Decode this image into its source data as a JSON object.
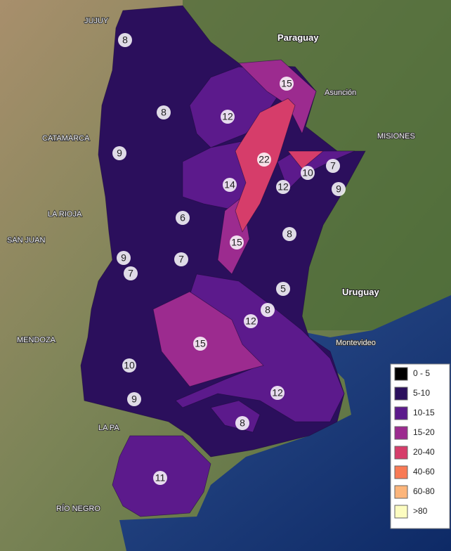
{
  "places": [
    "JUJUY",
    "Paraguay",
    "Asunción",
    "CATAMARCA",
    "LA RIOJA",
    "SAN JUAN",
    "MENDOZA",
    "MISIONES",
    "Uruguay",
    "Montevideo",
    "RÍO NEGRO",
    "LA PA"
  ],
  "regions": [
    8,
    15,
    8,
    12,
    9,
    22,
    7,
    10,
    9,
    14,
    12,
    6,
    8,
    15,
    9,
    7,
    7,
    5,
    8,
    12,
    15,
    10,
    12,
    9,
    8,
    11
  ],
  "legend": [
    {
      "label": "0 - 5",
      "color": "#000000"
    },
    {
      "label": "5-10",
      "color": "#2b0f5c"
    },
    {
      "label": "10-15",
      "color": "#5c1a8c"
    },
    {
      "label": "15-20",
      "color": "#9c2b8f"
    },
    {
      "label": "20-40",
      "color": "#d63d6a"
    },
    {
      "label": "40-60",
      "color": "#f87a55"
    },
    {
      "label": "60-80",
      "color": "#fcb57b"
    },
    {
      "label": ">80",
      "color": "#fcfcc0"
    }
  ]
}
